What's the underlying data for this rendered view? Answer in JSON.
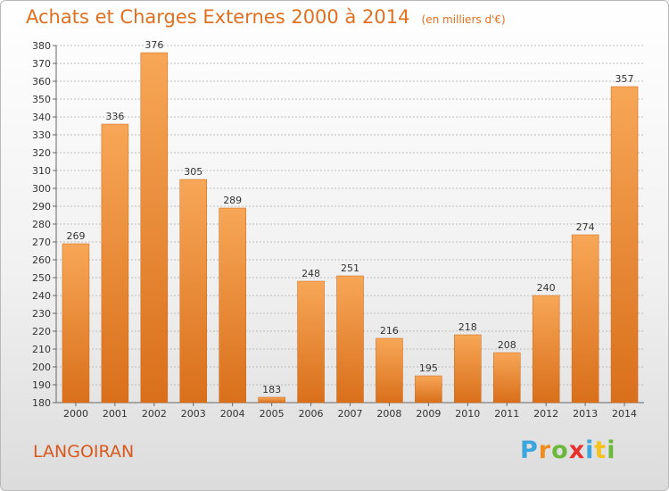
{
  "title": "Achats et Charges Externes 2000 à 2014",
  "title_unit": "(en milliers d'€)",
  "commune": "LANGOIRAN",
  "logo": {
    "text": "Proxiti",
    "letter_colors": [
      "#3aa6dd",
      "#f08c1e",
      "#6bb83a",
      "#e8312f",
      "#3aa6dd",
      "#f4c21b",
      "#6bb83a"
    ]
  },
  "colors": {
    "bar_light": "#f7a757",
    "bar_dark": "#d96f1b",
    "grid": "#bdbdbd",
    "title": "#e0701f"
  },
  "chart_data": {
    "type": "bar",
    "categories": [
      "2000",
      "2001",
      "2002",
      "2003",
      "2004",
      "2005",
      "2006",
      "2007",
      "2008",
      "2009",
      "2010",
      "2011",
      "2012",
      "2013",
      "2014"
    ],
    "values": [
      269,
      336,
      376,
      305,
      289,
      183,
      248,
      251,
      216,
      195,
      218,
      208,
      240,
      274,
      357
    ],
    "ylim": [
      180,
      380
    ],
    "yticks": [
      180,
      190,
      200,
      210,
      220,
      230,
      240,
      250,
      260,
      270,
      280,
      290,
      300,
      310,
      320,
      330,
      340,
      350,
      360,
      370,
      380
    ],
    "grid": true,
    "data_labels": true
  }
}
